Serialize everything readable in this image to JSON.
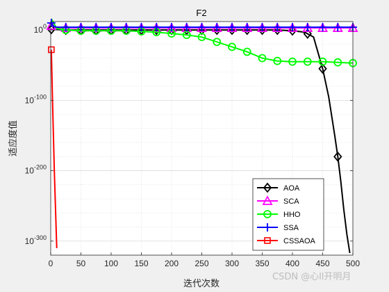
{
  "chart_data": {
    "type": "line",
    "title": "F2",
    "xlabel": "迭代次数",
    "ylabel": "适应度值",
    "xlim": [
      0,
      500
    ],
    "ylim_log10": [
      -320,
      12
    ],
    "yscale": "log",
    "grid": true,
    "x_ticks": [
      "0",
      "50",
      "100",
      "150",
      "200",
      "250",
      "300",
      "350",
      "400",
      "450",
      "500"
    ],
    "y_ticks": [
      {
        "base": "10",
        "exp": "0",
        "log10": 0
      },
      {
        "base": "10",
        "exp": "-100",
        "log10": -100
      },
      {
        "base": "10",
        "exp": "-200",
        "log10": -200
      },
      {
        "base": "10",
        "exp": "-300",
        "log10": -300
      }
    ],
    "legend_position": "lower-right",
    "series": [
      {
        "name": "AOA",
        "color": "#000000",
        "marker": "diamond",
        "x": [
          1,
          25,
          50,
          75,
          100,
          125,
          150,
          175,
          200,
          225,
          250,
          275,
          300,
          325,
          350,
          375,
          400,
          420,
          435,
          450,
          460,
          470,
          475,
          480,
          485,
          490,
          495
        ],
        "log10_y": [
          1,
          0,
          0,
          0,
          0,
          0,
          0,
          0,
          0,
          0,
          0,
          0,
          0,
          0,
          0,
          0,
          -1,
          -3,
          -10,
          -55,
          -95,
          -150,
          -180,
          -215,
          -255,
          -290,
          -317
        ]
      },
      {
        "name": "SCA",
        "color": "#ff00ff",
        "marker": "triangle",
        "x": [
          1,
          5,
          10,
          25,
          50,
          75,
          100,
          150,
          200,
          250,
          300,
          350,
          400,
          450,
          500
        ],
        "log10_y": [
          6,
          5,
          3,
          3,
          3,
          3,
          3,
          3,
          3,
          3,
          3,
          3,
          3,
          3,
          3
        ]
      },
      {
        "name": "HHO",
        "color": "#00ff00",
        "marker": "circle",
        "x": [
          1,
          10,
          25,
          50,
          75,
          100,
          125,
          150,
          175,
          200,
          225,
          250,
          275,
          300,
          325,
          350,
          375,
          400,
          425,
          450,
          475,
          500
        ],
        "log10_y": [
          16,
          2,
          0,
          -1,
          -1,
          -1,
          -1,
          -2,
          -3,
          -5,
          -7,
          -10,
          -17,
          -24,
          -31,
          -40,
          -44,
          -45,
          -45,
          -45,
          -46,
          -47
        ]
      },
      {
        "name": "SSA",
        "color": "#0000ff",
        "marker": "plus",
        "x": [
          1,
          5,
          10,
          500
        ],
        "log10_y": [
          10,
          5,
          4,
          4
        ]
      },
      {
        "name": "CSSAOA",
        "color": "#ff0000",
        "marker": "square",
        "x": [
          1,
          3,
          6,
          10
        ],
        "log10_y": [
          -28,
          -100,
          -200,
          -310
        ]
      }
    ]
  },
  "watermark": "CSDN @心ll开明月"
}
